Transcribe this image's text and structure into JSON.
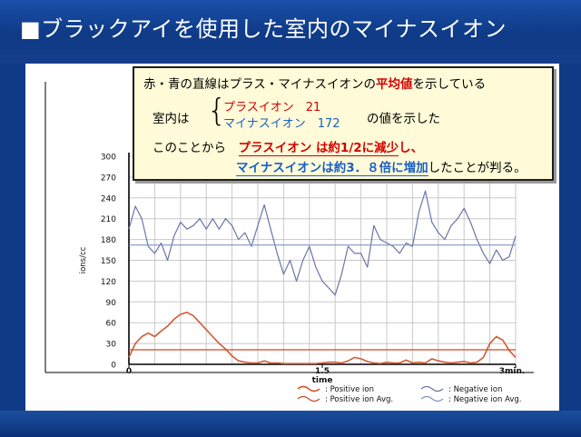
{
  "slide": {
    "title": "■ブラックアイを使用した室内のマイナスイオン"
  },
  "callout": {
    "line1_pre": "赤・青の直線はプラス・マイナスイオンの",
    "line1_hl": "平均値",
    "line1_post": "を示している",
    "room_label": "室内は",
    "positive_text": "プラスイオン　21",
    "negative_text": "マイナスイオン　172",
    "value_suffix": "の値を示した",
    "line3_pre": "このことから",
    "line3_hl_a": "プラスイオン",
    "line3_mid": "は約1/2に",
    "line3_hl_b": "減少",
    "line3_post": "し、",
    "line4_hl_a": "マイナスイオン",
    "line4_mid": "は約3．８倍に",
    "line4_hl_b": "増加",
    "line4_post": "したことが判る。"
  },
  "colors": {
    "positive": "#d25a32",
    "negative": "#6a75a8",
    "positive_avg": "#cc4a28",
    "negative_avg": "#8593c0",
    "grid": "#c8c8c8"
  },
  "chart_data": {
    "type": "line",
    "ylabel": "ions/cc",
    "xlabel": "time",
    "ylim": [
      0,
      300
    ],
    "yticks": [
      "0",
      "30",
      "60",
      "90",
      "120",
      "150",
      "180",
      "210",
      "240",
      "270",
      "300"
    ],
    "xlim": [
      0,
      3
    ],
    "xticks": [
      {
        "value": 0,
        "label": "0"
      },
      {
        "value": 1.5,
        "label": "1.5"
      },
      {
        "value": 3,
        "label": "3min."
      }
    ],
    "grid": true,
    "legend_position": "bottom",
    "series": [
      {
        "name": ": Negative ion",
        "x": [
          0,
          0.05,
          0.1,
          0.15,
          0.2,
          0.25,
          0.3,
          0.35,
          0.4,
          0.45,
          0.5,
          0.55,
          0.6,
          0.65,
          0.7,
          0.75,
          0.8,
          0.85,
          0.9,
          0.95,
          1.0,
          1.05,
          1.1,
          1.15,
          1.2,
          1.25,
          1.3,
          1.35,
          1.4,
          1.45,
          1.5,
          1.55,
          1.6,
          1.65,
          1.7,
          1.75,
          1.8,
          1.85,
          1.9,
          1.95,
          2.0,
          2.05,
          2.1,
          2.15,
          2.2,
          2.25,
          2.3,
          2.35,
          2.4,
          2.45,
          2.5,
          2.55,
          2.6,
          2.65,
          2.7,
          2.75,
          2.8,
          2.85,
          2.9,
          2.95,
          3.0
        ],
        "values": [
          195,
          228,
          210,
          170,
          160,
          175,
          150,
          185,
          205,
          195,
          200,
          210,
          195,
          210,
          195,
          210,
          200,
          180,
          190,
          170,
          200,
          230,
          195,
          160,
          130,
          150,
          120,
          150,
          170,
          140,
          120,
          110,
          100,
          130,
          170,
          160,
          160,
          140,
          200,
          180,
          175,
          170,
          160,
          175,
          170,
          220,
          250,
          205,
          190,
          180,
          200,
          210,
          225,
          205,
          180,
          160,
          145,
          165,
          150,
          155,
          185
        ]
      },
      {
        "name": ": Positive ion",
        "x": [
          0,
          0.05,
          0.1,
          0.15,
          0.2,
          0.25,
          0.3,
          0.35,
          0.4,
          0.45,
          0.5,
          0.55,
          0.6,
          0.65,
          0.7,
          0.75,
          0.8,
          0.85,
          0.9,
          0.95,
          1.0,
          1.05,
          1.1,
          1.15,
          1.2,
          1.25,
          1.3,
          1.35,
          1.4,
          1.45,
          1.5,
          1.55,
          1.6,
          1.65,
          1.7,
          1.75,
          1.8,
          1.85,
          1.9,
          1.95,
          2.0,
          2.05,
          2.1,
          2.15,
          2.2,
          2.25,
          2.3,
          2.35,
          2.4,
          2.45,
          2.5,
          2.55,
          2.6,
          2.65,
          2.7,
          2.75,
          2.8,
          2.85,
          2.9,
          2.95,
          3.0
        ],
        "values": [
          10,
          30,
          40,
          45,
          40,
          48,
          55,
          65,
          72,
          75,
          70,
          60,
          50,
          40,
          30,
          22,
          12,
          5,
          3,
          2,
          2,
          5,
          2,
          2,
          1,
          1,
          1,
          1,
          1,
          1,
          2,
          3,
          3,
          2,
          5,
          10,
          8,
          4,
          2,
          1,
          3,
          2,
          2,
          6,
          2,
          3,
          2,
          8,
          5,
          3,
          2,
          3,
          4,
          2,
          3,
          10,
          30,
          40,
          35,
          20,
          10
        ]
      },
      {
        "name": ": Positive ion Avg.",
        "x": [
          0,
          3
        ],
        "values": [
          21,
          21
        ]
      },
      {
        "name": ": Negative ion Avg.",
        "x": [
          0,
          3
        ],
        "values": [
          172,
          172
        ]
      }
    ]
  }
}
